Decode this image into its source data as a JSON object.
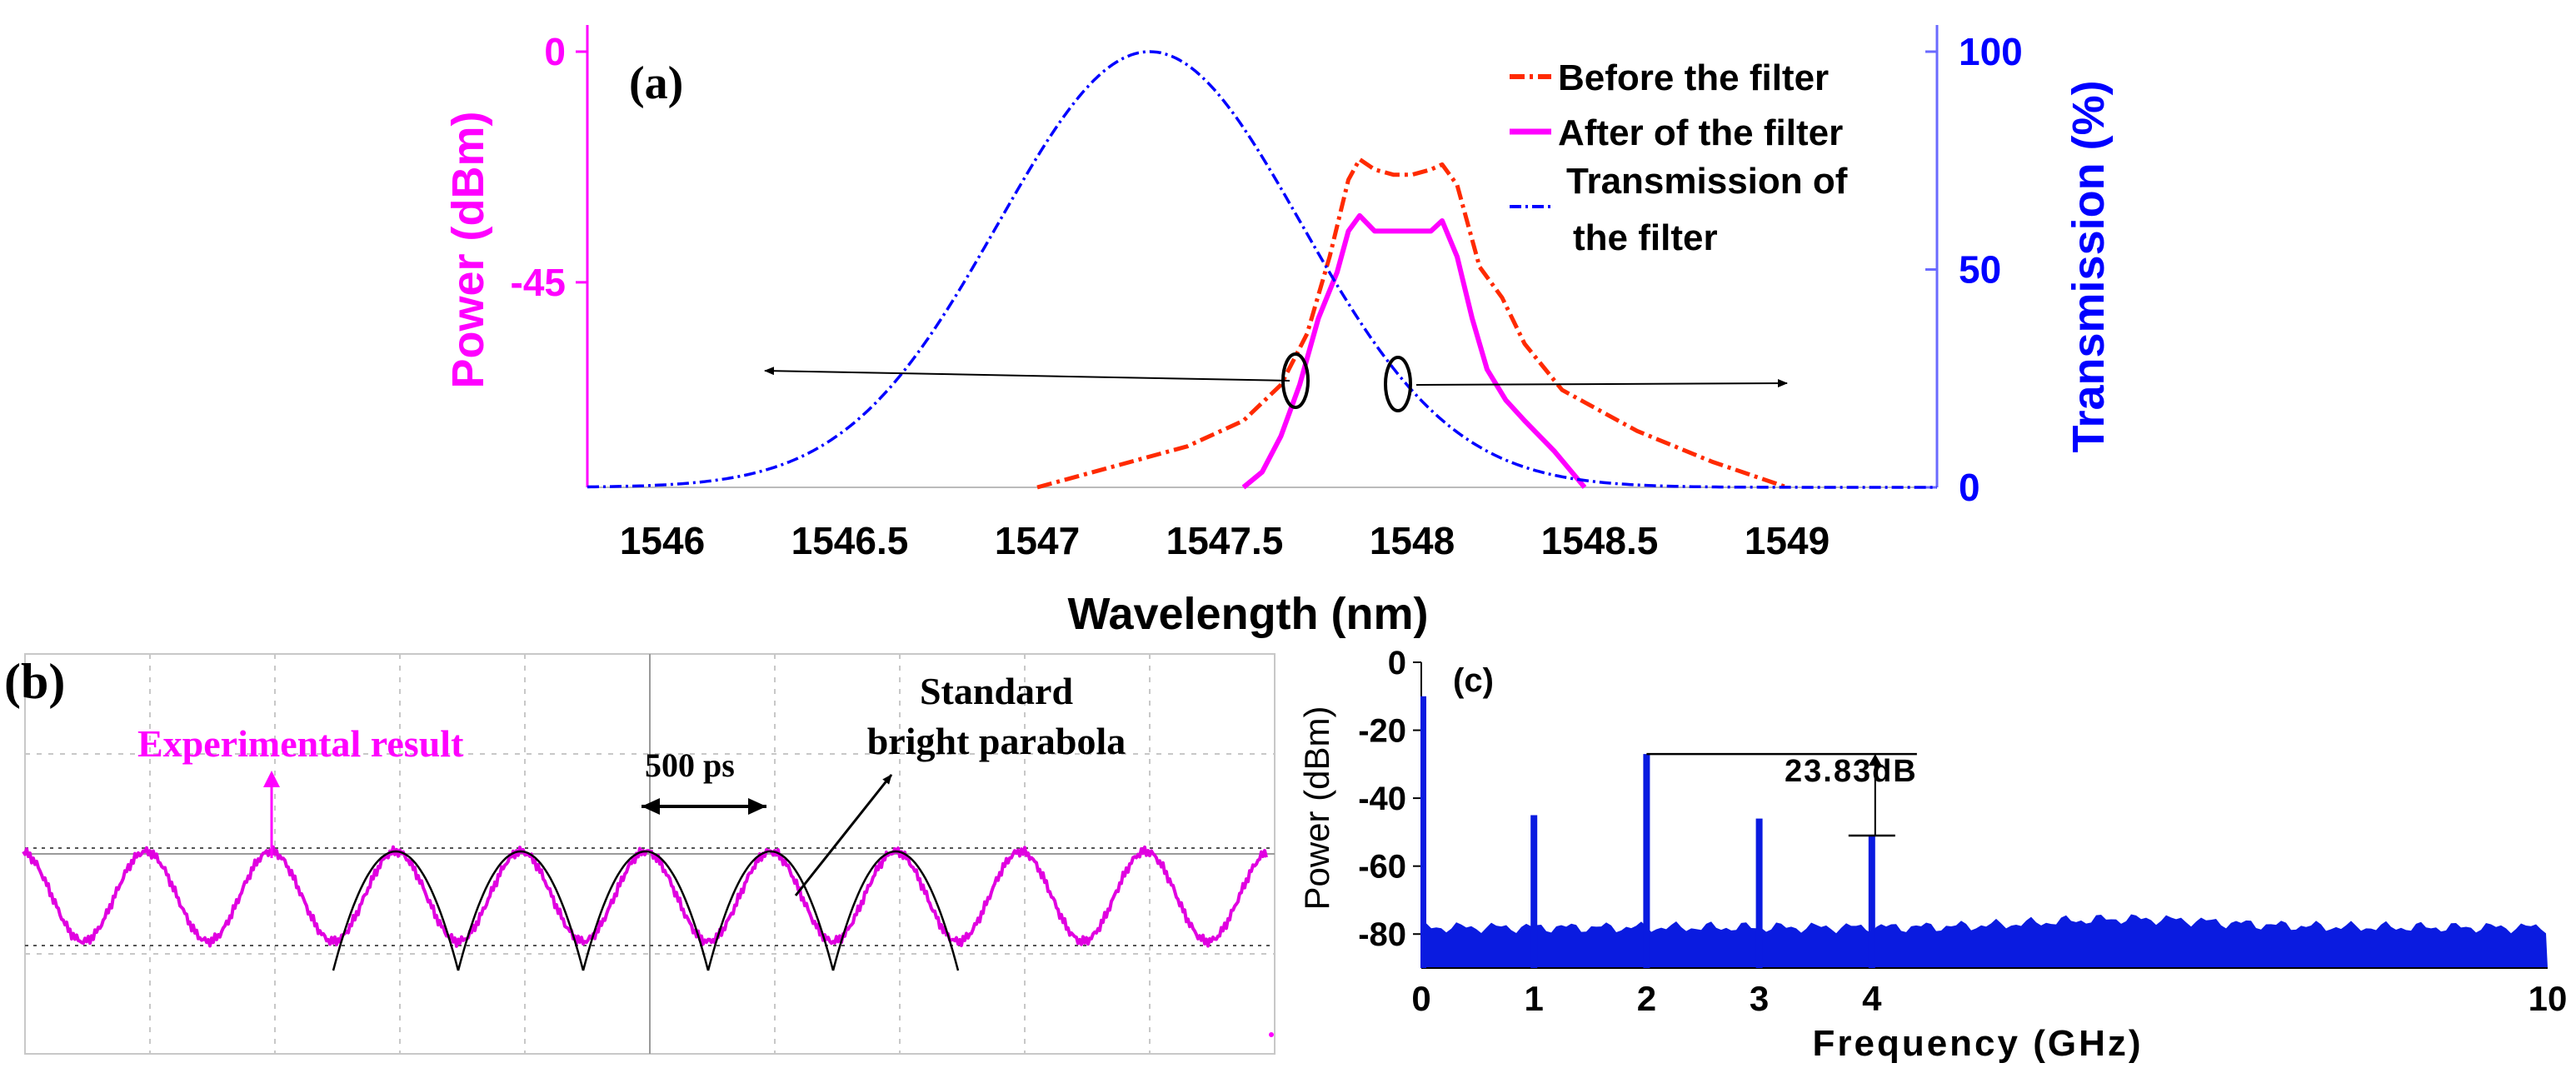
{
  "colors": {
    "magenta": "#ff00ff",
    "red": "#ff2a00",
    "blue": "#0000ff",
    "black": "#000000",
    "grid": "#c8c8c8",
    "c_fill": "#0a1be0",
    "scope_trace": "#e000e0"
  },
  "chart_data": [
    {
      "id": "a",
      "type": "line",
      "panel_label": "(a)",
      "xlabel": "Wavelength (nm)",
      "ylabel_left": "Power (dBm)",
      "ylabel_right": "Transmission (%)",
      "xlim": [
        1545.8,
        1549.4
      ],
      "ylim_left": [
        -85,
        0
      ],
      "ylim_right": [
        0,
        100
      ],
      "x_ticks": [
        "1546",
        "1546.5",
        "1547",
        "1547.5",
        "1548",
        "1548.5",
        "1549"
      ],
      "y_ticks_left": [
        "0",
        "-45"
      ],
      "y_ticks_right": [
        "100",
        "50",
        "0"
      ],
      "legend": [
        "Before the filter",
        "After of the filter",
        "Transmission of",
        "the filter"
      ],
      "legend_position": "top-right",
      "series": [
        {
          "name": "Before the filter",
          "axis": "left",
          "style": "dash-dot",
          "color": "#ff2a00",
          "x": [
            1547.0,
            1547.2,
            1547.4,
            1547.55,
            1547.65,
            1547.72,
            1547.78,
            1547.83,
            1547.86,
            1547.9,
            1547.95,
            1548.0,
            1548.05,
            1548.08,
            1548.12,
            1548.18,
            1548.24,
            1548.3,
            1548.4,
            1548.6,
            1548.8,
            1549.0
          ],
          "y": [
            -85,
            -81,
            -77,
            -72,
            -65,
            -55,
            -40,
            -25,
            -21,
            -23,
            -24,
            -24,
            -23,
            -22,
            -26,
            -42,
            -48,
            -57,
            -66,
            -74,
            -80,
            -85
          ]
        },
        {
          "name": "After of the filter",
          "axis": "left",
          "style": "solid",
          "color": "#ff00ff",
          "x": [
            1547.55,
            1547.6,
            1547.65,
            1547.7,
            1547.75,
            1547.8,
            1547.83,
            1547.86,
            1547.9,
            1547.95,
            1548.0,
            1548.05,
            1548.08,
            1548.12,
            1548.16,
            1548.2,
            1548.25,
            1548.3,
            1548.38,
            1548.46
          ],
          "y": [
            -85,
            -82,
            -75,
            -65,
            -52,
            -43,
            -35,
            -32,
            -35,
            -35,
            -35,
            -35,
            -33,
            -40,
            -52,
            -62,
            -68,
            -72,
            -78,
            -85
          ]
        },
        {
          "name": "Transmission of the filter",
          "axis": "right",
          "style": "dash-dot",
          "color": "#0000ff",
          "model": "gaussian",
          "center_nm": 1547.3,
          "fwhm_nm": 0.95,
          "peak_percent": 100
        }
      ],
      "annotations": [
        {
          "type": "arrow",
          "text": "",
          "from_x": 1547.7,
          "to_x": 1546.3,
          "axis": "left"
        },
        {
          "type": "arrow",
          "text": "",
          "from_x": 1547.97,
          "to_x": 1548.8,
          "axis": "right"
        }
      ]
    },
    {
      "id": "b",
      "type": "line",
      "panel_label": "(b)",
      "xlabel": "",
      "ylabel": "",
      "grid": true,
      "period_label": "500 ps",
      "n_periods": 10,
      "series": [
        {
          "name": "Experimental result",
          "color": "#e000e0",
          "shape": "sinusoid"
        },
        {
          "name": "Standard bright parabola",
          "color": "#000000",
          "shape": "parabola",
          "periods_shown": [
            4,
            5,
            6,
            7,
            8
          ]
        }
      ],
      "annotations": [
        "Experimental result",
        "500 ps",
        "Standard",
        "bright parabola"
      ]
    },
    {
      "id": "c",
      "type": "bar",
      "panel_label": "(c)",
      "xlabel": "Frequency (GHz)",
      "ylabel": "Power (dBm)",
      "xlim": [
        0,
        10
      ],
      "ylim": [
        -90,
        0
      ],
      "x_ticks": [
        "0",
        "1",
        "2",
        "3",
        "4",
        "10"
      ],
      "y_ticks": [
        "0",
        "-20",
        "-40",
        "-60",
        "-80"
      ],
      "noise_floor_dBm": -78,
      "x": [
        0,
        1,
        2,
        3,
        4
      ],
      "values": [
        -10,
        -45,
        -27,
        -46,
        -51
      ],
      "annotation": "23.83dB",
      "annotation_from": -27,
      "annotation_to": -51
    }
  ]
}
